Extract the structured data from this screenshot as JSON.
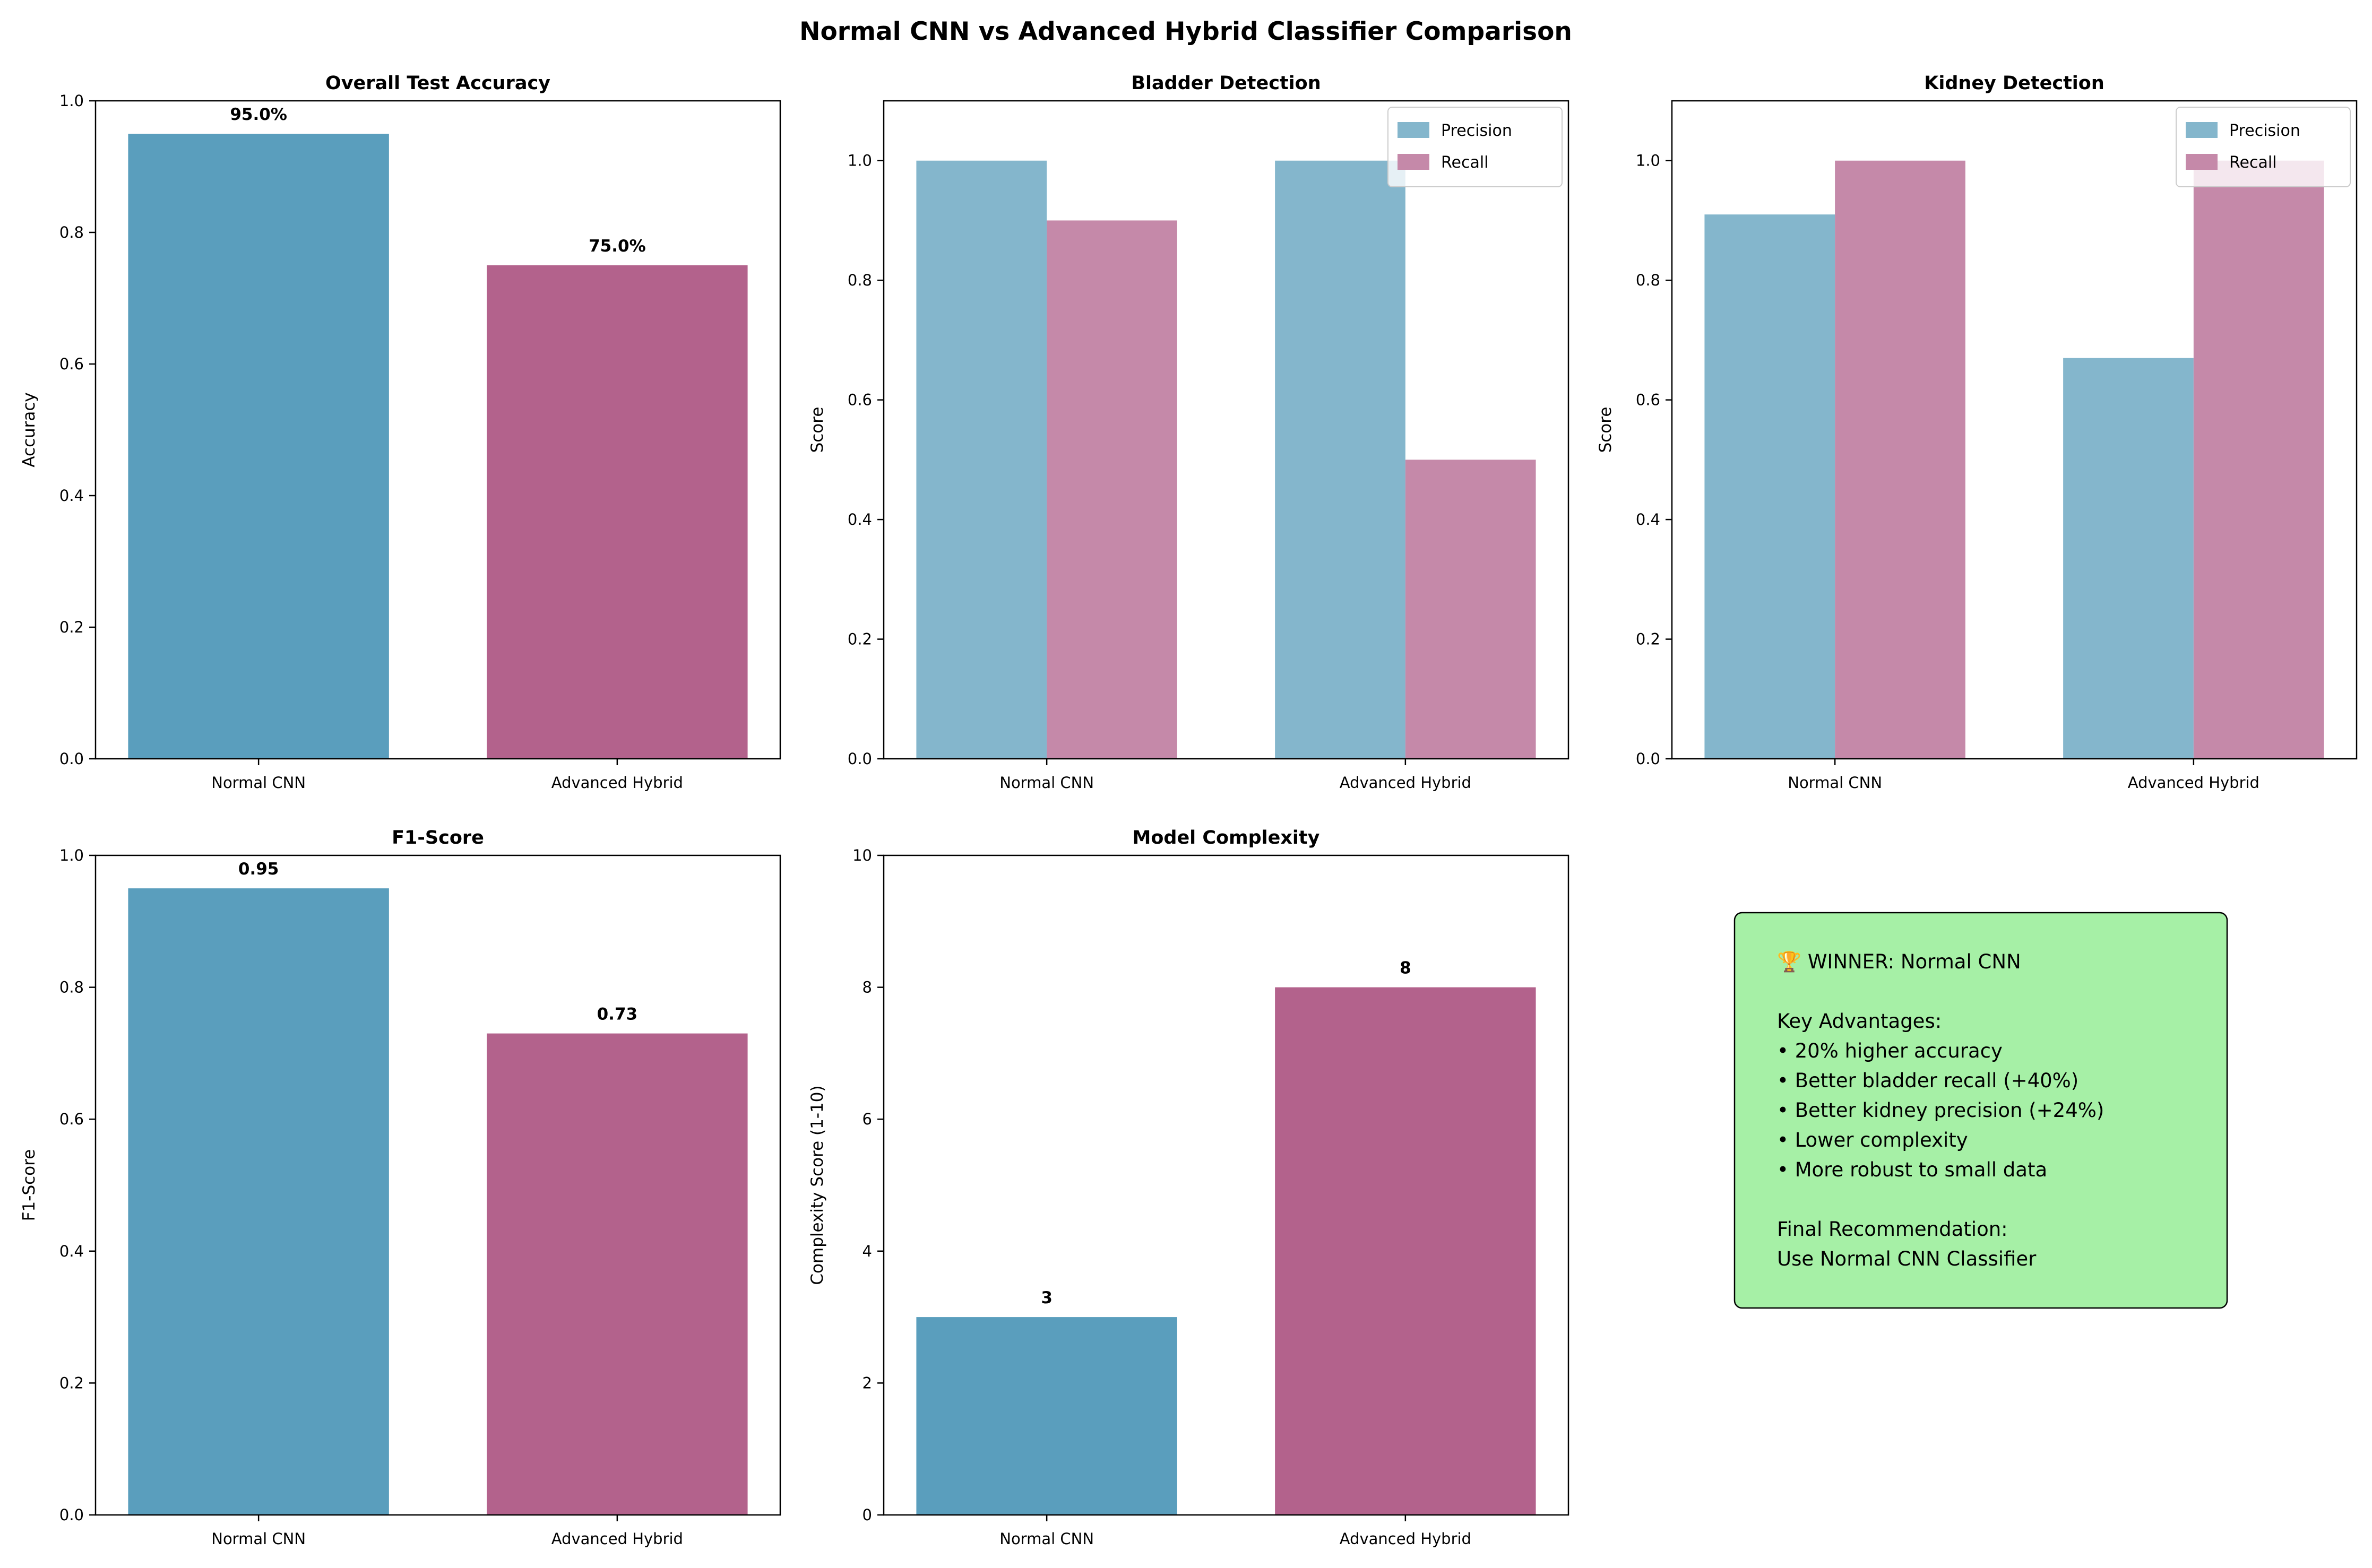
{
  "figure_title": "Normal CNN vs Advanced Hybrid Classifier Comparison",
  "colors": {
    "cnn": "#5a9ebd",
    "hybrid": "#b3628c",
    "precision": "#84b6cc",
    "recall": "#c589a9",
    "note_bg": "#a6f0a6"
  },
  "chart_data": [
    {
      "type": "bar",
      "title": "Overall Test Accuracy",
      "xlabel": "",
      "ylabel": "Accuracy",
      "categories": [
        "Normal CNN",
        "Advanced Hybrid"
      ],
      "values": [
        0.95,
        0.75
      ],
      "data_labels": [
        "95.0%",
        "75.0%"
      ],
      "ylim": [
        0,
        1.0
      ],
      "yticks": [
        "0.0",
        "0.2",
        "0.4",
        "0.6",
        "0.8",
        "1.0"
      ],
      "grid": false
    },
    {
      "type": "bar",
      "title": "Bladder Detection",
      "xlabel": "",
      "ylabel": "Score",
      "categories": [
        "Normal CNN",
        "Advanced Hybrid"
      ],
      "series": [
        {
          "name": "Precision",
          "values": [
            1.0,
            1.0
          ]
        },
        {
          "name": "Recall",
          "values": [
            0.9,
            0.5
          ]
        }
      ],
      "ylim": [
        0,
        1.1
      ],
      "yticks": [
        "0.0",
        "0.2",
        "0.4",
        "0.6",
        "0.8",
        "1.0"
      ],
      "legend": "top-right",
      "grid": false
    },
    {
      "type": "bar",
      "title": "Kidney Detection",
      "xlabel": "",
      "ylabel": "Score",
      "categories": [
        "Normal CNN",
        "Advanced Hybrid"
      ],
      "series": [
        {
          "name": "Precision",
          "values": [
            0.91,
            0.67
          ]
        },
        {
          "name": "Recall",
          "values": [
            1.0,
            1.0
          ]
        }
      ],
      "ylim": [
        0,
        1.1
      ],
      "yticks": [
        "0.0",
        "0.2",
        "0.4",
        "0.6",
        "0.8",
        "1.0"
      ],
      "legend": "top-right",
      "grid": false
    },
    {
      "type": "bar",
      "title": "F1-Score",
      "xlabel": "",
      "ylabel": "F1-Score",
      "categories": [
        "Normal CNN",
        "Advanced Hybrid"
      ],
      "values": [
        0.95,
        0.73
      ],
      "data_labels": [
        "0.95",
        "0.73"
      ],
      "ylim": [
        0,
        1.0
      ],
      "yticks": [
        "0.0",
        "0.2",
        "0.4",
        "0.6",
        "0.8",
        "1.0"
      ],
      "grid": false
    },
    {
      "type": "bar",
      "title": "Model Complexity",
      "xlabel": "",
      "ylabel": "Complexity Score (1-10)",
      "categories": [
        "Normal CNN",
        "Advanced Hybrid"
      ],
      "values": [
        3,
        8
      ],
      "data_labels": [
        "3",
        "8"
      ],
      "ylim": [
        0,
        10
      ],
      "yticks": [
        "0",
        "2",
        "4",
        "6",
        "8",
        "10"
      ],
      "grid": false
    }
  ],
  "summary_box": {
    "lines": [
      "🏆 WINNER: Normal CNN",
      "",
      "Key Advantages:",
      "• 20% higher accuracy",
      "• Better bladder recall (+40%)",
      "• Better kidney precision (+24%)",
      "• Lower complexity",
      "• More robust to small data",
      "",
      "Final Recommendation:",
      "Use Normal CNN Classifier"
    ]
  }
}
